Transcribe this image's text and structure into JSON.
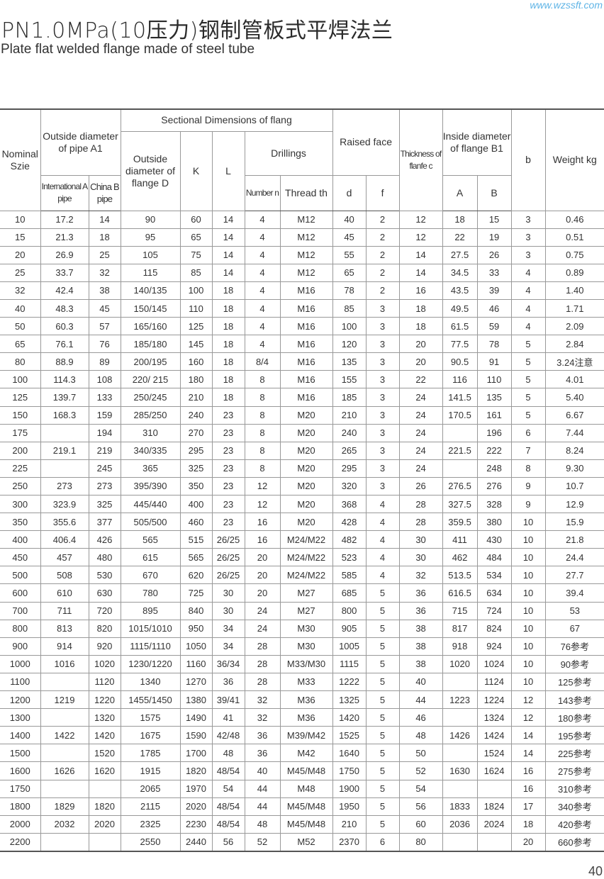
{
  "header": {
    "url": "www.wzssft.com",
    "title": "PN1.0MPa(10压力)钢制管板式平焊法兰",
    "subtitle": "Plate flat welded flange made of steel tube"
  },
  "table": {
    "headers": {
      "nominal": "Nominal Szie",
      "outside_pipe": "Outside diameter of pipe A1",
      "international": "International A pipe",
      "china": "China B pipe",
      "sectional": "Sectional Dimensions of flang",
      "outside_flange": "Outside diameter of flange D",
      "k": "K",
      "l": "L",
      "drillings": "Drillings",
      "number": "Number n",
      "thread": "Thread th",
      "raised_face": "Raised face",
      "d": "d",
      "f": "f",
      "thickness": "Thickness of flanfe c",
      "inside": "Inside diameter of flange B1",
      "a": "A",
      "b_col": "B",
      "b": "b",
      "weight": "Weight kg"
    },
    "rows": [
      [
        "10",
        "17.2",
        "14",
        "90",
        "60",
        "14",
        "4",
        "M12",
        "40",
        "2",
        "12",
        "18",
        "15",
        "3",
        "0.46"
      ],
      [
        "15",
        "21.3",
        "18",
        "95",
        "65",
        "14",
        "4",
        "M12",
        "45",
        "2",
        "12",
        "22",
        "19",
        "3",
        "0.51"
      ],
      [
        "20",
        "26.9",
        "25",
        "105",
        "75",
        "14",
        "4",
        "M12",
        "55",
        "2",
        "14",
        "27.5",
        "26",
        "3",
        "0.75"
      ],
      [
        "25",
        "33.7",
        "32",
        "115",
        "85",
        "14",
        "4",
        "M12",
        "65",
        "2",
        "14",
        "34.5",
        "33",
        "4",
        "0.89"
      ],
      [
        "32",
        "42.4",
        "38",
        "140/135",
        "100",
        "18",
        "4",
        "M16",
        "78",
        "2",
        "16",
        "43.5",
        "39",
        "4",
        "1.40"
      ],
      [
        "40",
        "48.3",
        "45",
        "150/145",
        "110",
        "18",
        "4",
        "M16",
        "85",
        "3",
        "18",
        "49.5",
        "46",
        "4",
        "1.71"
      ],
      [
        "50",
        "60.3",
        "57",
        "165/160",
        "125",
        "18",
        "4",
        "M16",
        "100",
        "3",
        "18",
        "61.5",
        "59",
        "4",
        "2.09"
      ],
      [
        "65",
        "76.1",
        "76",
        "185/180",
        "145",
        "18",
        "4",
        "M16",
        "120",
        "3",
        "20",
        "77.5",
        "78",
        "5",
        "2.84"
      ],
      [
        "80",
        "88.9",
        "89",
        "200/195",
        "160",
        "18",
        "8/4",
        "M16",
        "135",
        "3",
        "20",
        "90.5",
        "91",
        "5",
        "3.24注意"
      ],
      [
        "100",
        "114.3",
        "108",
        "220/ 215",
        "180",
        "18",
        "8",
        "M16",
        "155",
        "3",
        "22",
        "116",
        "110",
        "5",
        "4.01"
      ],
      [
        "125",
        "139.7",
        "133",
        "250/245",
        "210",
        "18",
        "8",
        "M16",
        "185",
        "3",
        "24",
        "141.5",
        "135",
        "5",
        "5.40"
      ],
      [
        "150",
        "168.3",
        "159",
        "285/250",
        "240",
        "23",
        "8",
        "M20",
        "210",
        "3",
        "24",
        "170.5",
        "161",
        "5",
        "6.67"
      ],
      [
        "175",
        "",
        "194",
        "310",
        "270",
        "23",
        "8",
        "M20",
        "240",
        "3",
        "24",
        "",
        "196",
        "6",
        "7.44"
      ],
      [
        "200",
        "219.1",
        "219",
        "340/335",
        "295",
        "23",
        "8",
        "M20",
        "265",
        "3",
        "24",
        "221.5",
        "222",
        "7",
        "8.24"
      ],
      [
        "225",
        "",
        "245",
        "365",
        "325",
        "23",
        "8",
        "M20",
        "295",
        "3",
        "24",
        "",
        "248",
        "8",
        "9.30"
      ],
      [
        "250",
        "273",
        "273",
        "395/390",
        "350",
        "23",
        "12",
        "M20",
        "320",
        "3",
        "26",
        "276.5",
        "276",
        "9",
        "10.7"
      ],
      [
        "300",
        "323.9",
        "325",
        "445/440",
        "400",
        "23",
        "12",
        "M20",
        "368",
        "4",
        "28",
        "327.5",
        "328",
        "9",
        "12.9"
      ],
      [
        "350",
        "355.6",
        "377",
        "505/500",
        "460",
        "23",
        "16",
        "M20",
        "428",
        "4",
        "28",
        "359.5",
        "380",
        "10",
        "15.9"
      ],
      [
        "400",
        "406.4",
        "426",
        "565",
        "515",
        "26/25",
        "16",
        "M24/M22",
        "482",
        "4",
        "30",
        "411",
        "430",
        "10",
        "21.8"
      ],
      [
        "450",
        "457",
        "480",
        "615",
        "565",
        "26/25",
        "20",
        "M24/M22",
        "523",
        "4",
        "30",
        "462",
        "484",
        "10",
        "24.4"
      ],
      [
        "500",
        "508",
        "530",
        "670",
        "620",
        "26/25",
        "20",
        "M24/M22",
        "585",
        "4",
        "32",
        "513.5",
        "534",
        "10",
        "27.7"
      ],
      [
        "600",
        "610",
        "630",
        "780",
        "725",
        "30",
        "20",
        "M27",
        "685",
        "5",
        "36",
        "616.5",
        "634",
        "10",
        "39.4"
      ],
      [
        "700",
        "711",
        "720",
        "895",
        "840",
        "30",
        "24",
        "M27",
        "800",
        "5",
        "36",
        "715",
        "724",
        "10",
        "53"
      ],
      [
        "800",
        "813",
        "820",
        "1015/1010",
        "950",
        "34",
        "24",
        "M30",
        "905",
        "5",
        "38",
        "817",
        "824",
        "10",
        "67"
      ],
      [
        "900",
        "914",
        "920",
        "1115/1110",
        "1050",
        "34",
        "28",
        "M30",
        "1005",
        "5",
        "38",
        "918",
        "924",
        "10",
        "76参考"
      ],
      [
        "1000",
        "1016",
        "1020",
        "1230/1220",
        "1160",
        "36/34",
        "28",
        "M33/M30",
        "1115",
        "5",
        "38",
        "1020",
        "1024",
        "10",
        "90参考"
      ],
      [
        "1100",
        "",
        "1120",
        "1340",
        "1270",
        "36",
        "28",
        "M33",
        "1222",
        "5",
        "40",
        "",
        "1124",
        "10",
        "125参考"
      ],
      [
        "1200",
        "1219",
        "1220",
        "1455/1450",
        "1380",
        "39/41",
        "32",
        "M36",
        "1325",
        "5",
        "44",
        "1223",
        "1224",
        "12",
        "143参考"
      ],
      [
        "1300",
        "",
        "1320",
        "1575",
        "1490",
        "41",
        "32",
        "M36",
        "1420",
        "5",
        "46",
        "",
        "1324",
        "12",
        "180参考"
      ],
      [
        "1400",
        "1422",
        "1420",
        "1675",
        "1590",
        "42/48",
        "36",
        "M39/M42",
        "1525",
        "5",
        "48",
        "1426",
        "1424",
        "14",
        "195参考"
      ],
      [
        "1500",
        "",
        "1520",
        "1785",
        "1700",
        "48",
        "36",
        "M42",
        "1640",
        "5",
        "50",
        "",
        "1524",
        "14",
        "225参考"
      ],
      [
        "1600",
        "1626",
        "1620",
        "1915",
        "1820",
        "48/54",
        "40",
        "M45/M48",
        "1750",
        "5",
        "52",
        "1630",
        "1624",
        "16",
        "275参考"
      ],
      [
        "1750",
        "",
        "",
        "2065",
        "1970",
        "54",
        "44",
        "M48",
        "1900",
        "5",
        "54",
        "",
        "",
        "16",
        "310参考"
      ],
      [
        "1800",
        "1829",
        "1820",
        "2115",
        "2020",
        "48/54",
        "44",
        "M45/M48",
        "1950",
        "5",
        "56",
        "1833",
        "1824",
        "17",
        "340参考"
      ],
      [
        "2000",
        "2032",
        "2020",
        "2325",
        "2230",
        "48/54",
        "48",
        "M45/M48",
        "210",
        "5",
        "60",
        "2036",
        "2024",
        "18",
        "420参考"
      ],
      [
        "2200",
        "",
        "",
        "2550",
        "2440",
        "56",
        "52",
        "M52",
        "2370",
        "6",
        "80",
        "",
        "",
        "20",
        "660参考"
      ]
    ]
  },
  "footer": {
    "page_number": "40"
  }
}
